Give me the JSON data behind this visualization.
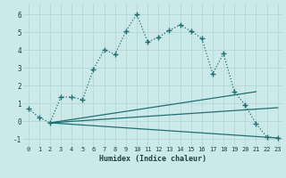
{
  "xlabel": "Humidex (Indice chaleur)",
  "xlim": [
    -0.5,
    23.5
  ],
  "ylim": [
    -1.4,
    6.6
  ],
  "xticks": [
    0,
    1,
    2,
    3,
    4,
    5,
    6,
    7,
    8,
    9,
    10,
    11,
    12,
    13,
    14,
    15,
    16,
    17,
    18,
    19,
    20,
    21,
    22,
    23
  ],
  "yticks": [
    -1,
    0,
    1,
    2,
    3,
    4,
    5,
    6
  ],
  "bg_color": "#cce9ea",
  "grid_color": "#b8d8d9",
  "line_color": "#1e7070",
  "line1_x": [
    0,
    1,
    2,
    3,
    4,
    5,
    6,
    7,
    8,
    9,
    10,
    11,
    12,
    13,
    14,
    15,
    16,
    17,
    18,
    19,
    20,
    21,
    22,
    23
  ],
  "line1_y": [
    0.7,
    0.2,
    -0.1,
    1.35,
    1.35,
    1.2,
    2.9,
    4.0,
    3.75,
    5.05,
    6.0,
    4.45,
    4.7,
    5.1,
    5.4,
    5.05,
    4.65,
    2.65,
    3.8,
    1.65,
    0.9,
    -0.15,
    -0.9,
    -0.95
  ],
  "line2_x": [
    2,
    21
  ],
  "line2_y": [
    -0.1,
    1.65
  ],
  "line3_x": [
    2,
    23
  ],
  "line3_y": [
    -0.1,
    0.75
  ],
  "line4_x": [
    2,
    23
  ],
  "line4_y": [
    -0.1,
    -0.95
  ]
}
